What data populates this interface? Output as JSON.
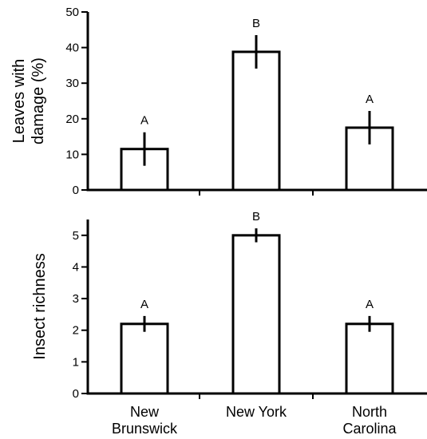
{
  "chart_data": [
    {
      "type": "bar",
      "categories": [
        "New Brunswick",
        "New York",
        "North Carolina"
      ],
      "category_label_lines": [
        [
          "New",
          "Brunswick"
        ],
        [
          "New York"
        ],
        [
          "North",
          "Carolina"
        ]
      ],
      "values": [
        11.5,
        38.8,
        17.5
      ],
      "errors": [
        4.7,
        4.7,
        4.7
      ],
      "significance": [
        "A",
        "B",
        "A"
      ],
      "ylabel_lines": [
        "Leaves with",
        "damage (%)"
      ],
      "ylim": [
        0,
        50
      ],
      "yticks": [
        0,
        10,
        20,
        30,
        40,
        50
      ],
      "show_category_labels": false
    },
    {
      "type": "bar",
      "categories": [
        "New Brunswick",
        "New York",
        "North Carolina"
      ],
      "category_label_lines": [
        [
          "New",
          "Brunswick"
        ],
        [
          "New York"
        ],
        [
          "North",
          "Carolina"
        ]
      ],
      "values": [
        2.2,
        5.0,
        2.2
      ],
      "errors": [
        0.25,
        0.22,
        0.25
      ],
      "significance": [
        "A",
        "B",
        "A"
      ],
      "ylabel_lines": [
        "Insect richness"
      ],
      "ylim": [
        0,
        5.5
      ],
      "yticks": [
        0,
        1,
        2,
        3,
        4,
        5
      ],
      "show_category_labels": true
    }
  ]
}
